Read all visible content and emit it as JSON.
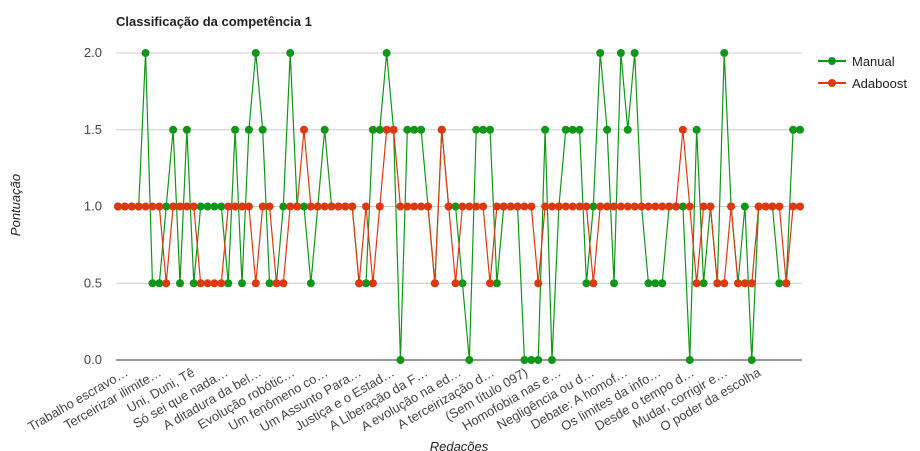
{
  "chart_data": {
    "type": "line",
    "title": "Classificação da competência 1",
    "xlabel": "Redações",
    "ylabel": "Pontuação",
    "ylim": [
      0,
      2
    ],
    "yticks": [
      "0.0",
      "0.5",
      "1.0",
      "1.5",
      "2.0"
    ],
    "grid": true,
    "legend_position": "right",
    "x_tick_labels": [
      "Trabalho escravo…",
      "Terceirizar ilimite…",
      "Uni, Duni, Tê",
      "Só sei que nada…",
      "A ditadura da bel…",
      "Evolução robótic…",
      "Um fenômeno co…",
      "Um Assunto Para…",
      "Justiça e o Estad…",
      "A Liberação da F…",
      "A evolução na ed…",
      "A terceirização d…",
      "(Sem título 097)",
      "Homofobia nas e…",
      "Negligência ou d…",
      "Debate: A homof…",
      "Os limites da info…",
      "Desde o tempo d…",
      "Mudar, corrigir e…",
      "O poder da escolha"
    ],
    "series": [
      {
        "name": "Manual",
        "color": "#109618",
        "values": [
          1,
          1,
          1,
          1,
          2,
          0.5,
          0.5,
          1,
          1.5,
          0.5,
          1.5,
          0.5,
          1,
          1,
          1,
          1,
          0.5,
          1.5,
          0.5,
          1.5,
          2,
          1.5,
          0.5,
          0.5,
          1,
          2,
          1,
          1,
          0.5,
          1,
          1.5,
          1,
          1,
          1,
          1,
          0.5,
          0.5,
          1.5,
          1.5,
          2,
          1.5,
          0,
          1.5,
          1.5,
          1.5,
          1,
          0.5,
          1.5,
          1,
          1,
          0.5,
          0,
          1.5,
          1.5,
          1.5,
          0.5,
          1,
          1,
          1,
          0,
          0,
          0,
          1.5,
          0,
          1,
          1.5,
          1.5,
          1.5,
          0.5,
          1,
          2,
          1.5,
          0.5,
          2,
          1.5,
          2,
          1,
          0.5,
          0.5,
          0.5,
          1,
          1,
          1,
          0,
          1.5,
          0.5,
          1,
          0.5,
          2,
          1,
          0.5,
          1,
          0,
          1,
          1,
          1,
          0.5,
          0.5,
          1.5,
          1.5
        ]
      },
      {
        "name": "Adaboost",
        "color": "#dc3912",
        "values": [
          1,
          1,
          1,
          1,
          1,
          1,
          1,
          0.5,
          1,
          1,
          1,
          1,
          0.5,
          0.5,
          0.5,
          0.5,
          1,
          1,
          1,
          1,
          0.5,
          1,
          1,
          0.5,
          0.5,
          1,
          1,
          1.5,
          1,
          1,
          1,
          1,
          1,
          1,
          1,
          0.5,
          1,
          0.5,
          1,
          1.5,
          1.5,
          1,
          1,
          1,
          1,
          1,
          0.5,
          1.5,
          1,
          0.5,
          1,
          1,
          1,
          1,
          0.5,
          1,
          1,
          1,
          1,
          1,
          1,
          0.5,
          1,
          1,
          1,
          1,
          1,
          1,
          1,
          0.5,
          1,
          1,
          1,
          1,
          1,
          1,
          1,
          1,
          1,
          1,
          1,
          1,
          1.5,
          1,
          0.5,
          1,
          1,
          0.5,
          0.5,
          1,
          0.5,
          0.5,
          0.5,
          1,
          1,
          1,
          1,
          0.5,
          1,
          1
        ]
      }
    ]
  }
}
